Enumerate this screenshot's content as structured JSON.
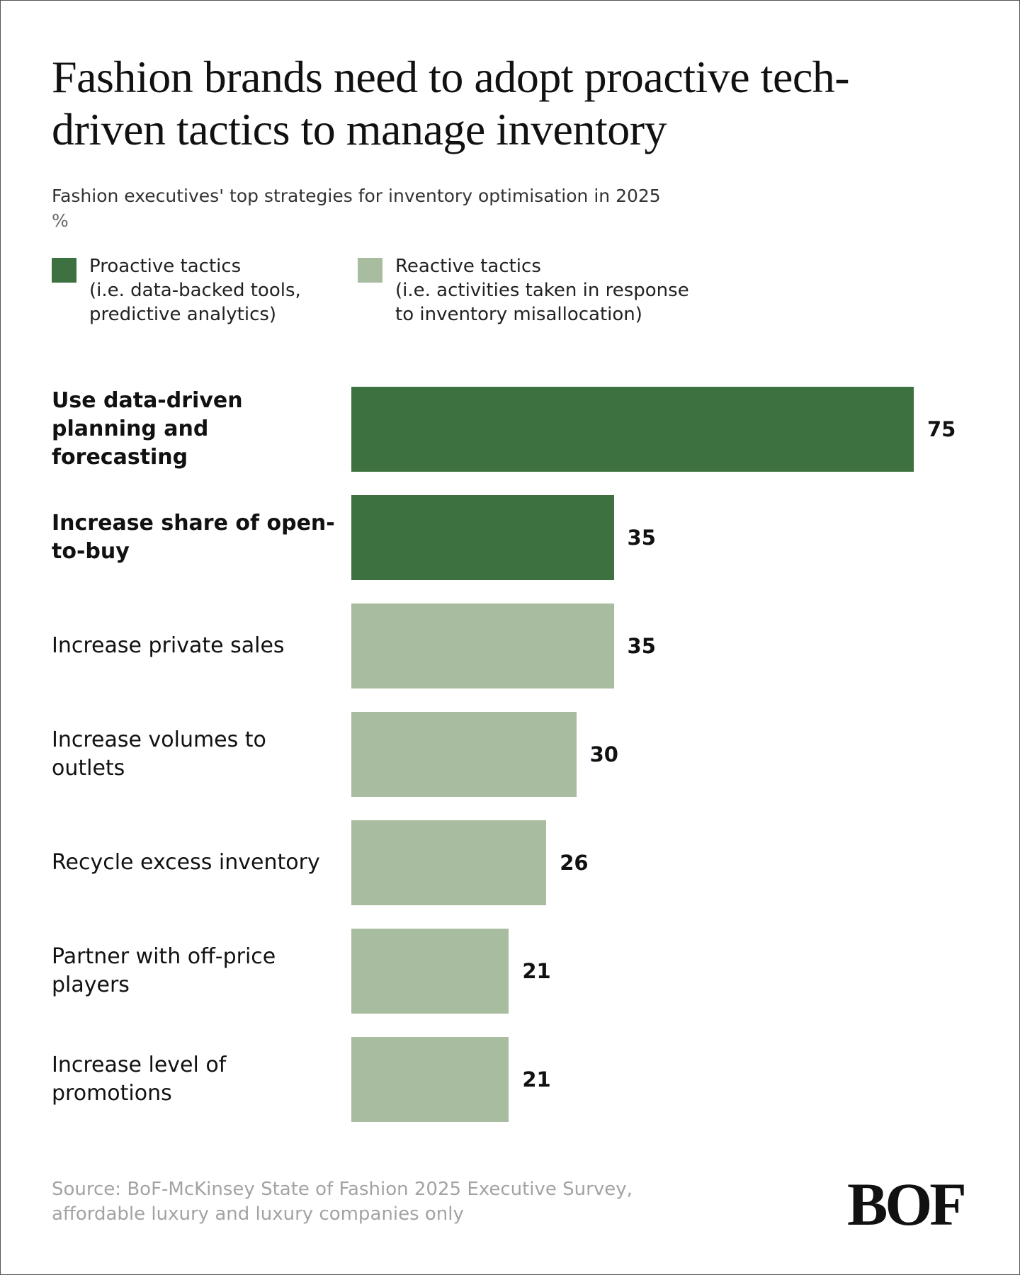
{
  "chart_data": {
    "type": "bar",
    "orientation": "horizontal",
    "title": "Fashion brands need to adopt proactive tech-driven tactics to manage inventory",
    "subtitle": "Fashion executives' top strategies for inventory optimisation in 2025",
    "unit": "%",
    "categories": [
      "Use data-driven planning and forecasting",
      "Increase share of open-to-buy",
      "Increase private sales",
      "Increase volumes to outlets",
      "Recycle excess inventory",
      "Partner with off-price players",
      "Increase level of promotions"
    ],
    "series": [
      {
        "name": "Proactive tactics",
        "description": "(i.e. data-backed tools, predictive analytics)",
        "color": "#3e7140",
        "values": [
          75,
          35,
          null,
          null,
          null,
          null,
          null
        ]
      },
      {
        "name": "Reactive tactics",
        "description": "(i.e. activities taken in response to inventory misallocation)",
        "color": "#a8bd9f",
        "values": [
          null,
          null,
          35,
          30,
          26,
          21,
          21
        ]
      }
    ],
    "source": "Source: BoF-McKinsey State of Fashion 2025 Executive Survey, affordable luxury and luxury companies only",
    "logo": "BOF"
  }
}
